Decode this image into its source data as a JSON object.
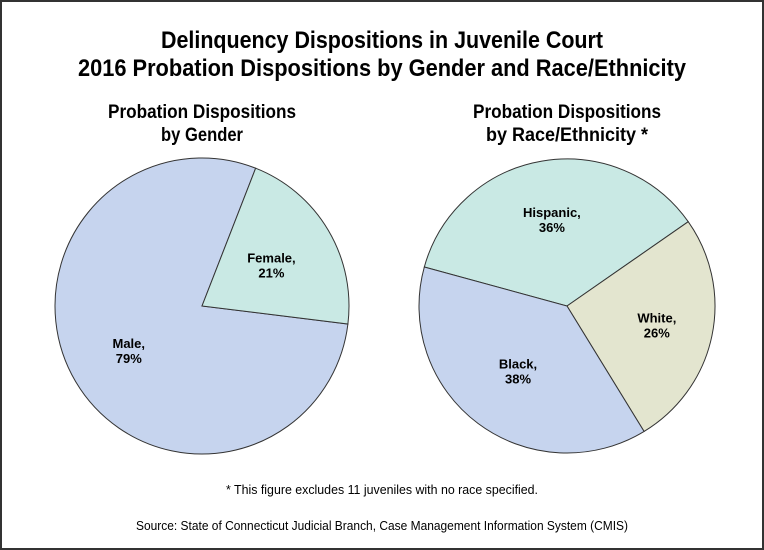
{
  "chart_data": [
    {
      "type": "pie",
      "title": "Delinquency Dispositions in Juvenile Court",
      "subtitle": "2016 Probation Dispositions by Gender and Race/Ethnicity",
      "chart_title_lines": [
        "Probation Dispositions",
        "by Gender"
      ],
      "categories": [
        "Male",
        "Female"
      ],
      "values": [
        79,
        21
      ],
      "labels": [
        [
          "Male,",
          "79%"
        ],
        [
          "Female,",
          "21%"
        ]
      ],
      "colors": [
        "#c6d4ee",
        "#c9e9e4"
      ],
      "legend": "none"
    },
    {
      "type": "pie",
      "chart_title_lines": [
        "Probation Dispositions",
        "by Race/Ethnicity *"
      ],
      "categories": [
        "Hispanic",
        "White",
        "Black"
      ],
      "values": [
        36,
        26,
        38
      ],
      "labels": [
        [
          "Hispanic,",
          "36%"
        ],
        [
          "White,",
          "26%"
        ],
        [
          "Black,",
          "38%"
        ]
      ],
      "colors": [
        "#c9e9e4",
        "#e3e5cf",
        "#c6d4ee"
      ],
      "legend": "none"
    }
  ],
  "footnote": "* This figure excludes 11 juveniles with no race specified.",
  "source": "Source: State of Connecticut Judicial Branch, Case Management Information System (CMIS)"
}
